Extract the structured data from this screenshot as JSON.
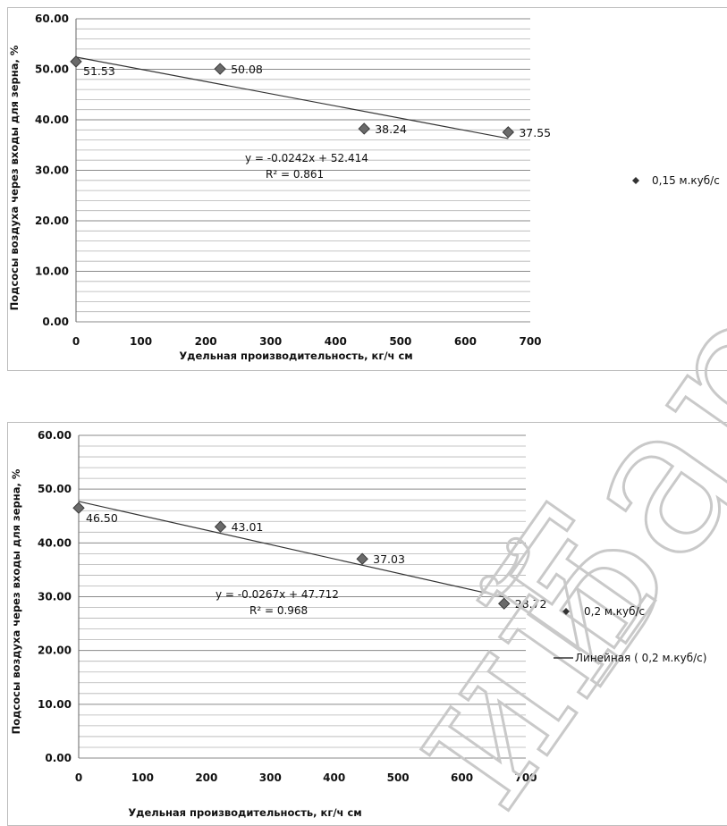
{
  "chart_data": [
    {
      "type": "scatter",
      "title": "",
      "xlabel": "Удельная производительность, кг/ч см",
      "ylabel": "Подсосы воздуха через входы для зерна, %",
      "xlim": [
        0,
        700
      ],
      "ylim": [
        0,
        60
      ],
      "x_ticks": [
        "0",
        "100",
        "200",
        "300",
        "400",
        "500",
        "600",
        "700"
      ],
      "y_ticks": [
        "0.00",
        "10.00",
        "20.00",
        "30.00",
        "40.00",
        "50.00",
        "60.00"
      ],
      "grid": "horizontal",
      "legend_position": "right",
      "series": [
        {
          "name": "0,15 м.куб/с",
          "marker": "diamond",
          "x": [
            0,
            222,
            444,
            666
          ],
          "y": [
            51.53,
            50.08,
            38.24,
            37.55
          ],
          "data_labels": [
            "51.53",
            "50.08",
            "38.24",
            "37.55"
          ]
        }
      ],
      "trendline": {
        "slope": -0.0242,
        "intercept": 52.414,
        "x_range": [
          0,
          666
        ],
        "equation": "y = -0.0242x + 52.414",
        "r_squared": "R² = 0.861"
      },
      "legend": [
        {
          "label": "0,15 м.куб/с",
          "symbol": "diamond"
        }
      ]
    },
    {
      "type": "scatter",
      "title": "",
      "xlabel": "Удельная производительность, кг/ч см",
      "ylabel": "Подсосы воздуха через входы для зерна, %",
      "xlim": [
        0,
        700
      ],
      "ylim": [
        0,
        60
      ],
      "x_ticks": [
        "0",
        "100",
        "200",
        "300",
        "400",
        "500",
        "600",
        "700"
      ],
      "y_ticks": [
        "0.00",
        "10.00",
        "20.00",
        "30.00",
        "40.00",
        "50.00",
        "60.00"
      ],
      "grid": "horizontal",
      "legend_position": "right",
      "series": [
        {
          "name": "0,2 м.куб/с",
          "marker": "diamond",
          "x": [
            0,
            222,
            444,
            666
          ],
          "y": [
            46.5,
            43.01,
            37.03,
            28.72
          ],
          "data_labels": [
            "46.50",
            "43.01",
            "37.03",
            "28.72"
          ]
        }
      ],
      "trendline": {
        "slope": -0.0267,
        "intercept": 47.712,
        "x_range": [
          0,
          666
        ],
        "equation": "y = -0.0267x + 47.712",
        "r_squared": "R² = 0.968"
      },
      "legend": [
        {
          "label": "0,2 м.куб/с",
          "symbol": "diamond"
        },
        {
          "label": "Линейная ( 0,2 м.куб/с)",
          "symbol": "line"
        }
      ]
    }
  ],
  "watermark": {
    "text_lower": "ий",
    "text_upper": "Бар"
  }
}
